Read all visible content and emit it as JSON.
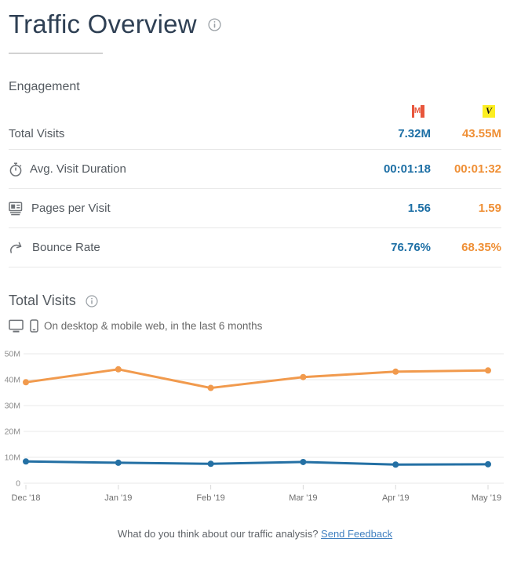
{
  "page": {
    "title": "Traffic Overview"
  },
  "engagement": {
    "section_label": "Engagement",
    "competitors": [
      {
        "name": "site-m",
        "letter": "M",
        "color": "#e8563c"
      },
      {
        "name": "site-v",
        "letter": "V",
        "color": "#fcee21"
      }
    ],
    "rows": [
      {
        "label": "Total Visits",
        "icon": "none",
        "values": [
          "7.32M",
          "43.55M"
        ]
      },
      {
        "label": "Avg. Visit Duration",
        "icon": "stopwatch",
        "values": [
          "00:01:18",
          "00:01:32"
        ]
      },
      {
        "label": "Pages per Visit",
        "icon": "pages",
        "values": [
          "1.56",
          "1.59"
        ]
      },
      {
        "label": "Bounce Rate",
        "icon": "bounce",
        "values": [
          "76.76%",
          "68.35%"
        ]
      }
    ]
  },
  "chart_section": {
    "title": "Total Visits",
    "subtitle": "On desktop & mobile web, in the last 6 months"
  },
  "chart_data": {
    "type": "line",
    "title": "Total Visits",
    "x": [
      "Dec '18",
      "Jan '19",
      "Feb '19",
      "Mar '19",
      "Apr '19",
      "May '19"
    ],
    "series": [
      {
        "name": "site-m-visits",
        "color": "#2470a4",
        "values": [
          8.4,
          7.9,
          7.5,
          8.2,
          7.2,
          7.32
        ]
      },
      {
        "name": "site-v-visits",
        "color": "#f19a4d",
        "values": [
          39.0,
          44.0,
          36.8,
          41.0,
          43.1,
          43.55
        ]
      }
    ],
    "value_unit": "millions",
    "ylim": [
      0,
      50
    ],
    "ylabel_ticks": [
      "0",
      "10M",
      "20M",
      "30M",
      "40M",
      "50M"
    ],
    "grid": true,
    "legend": "none"
  },
  "footer": {
    "question": "What do you think about our traffic analysis? ",
    "link_label": "Send Feedback"
  },
  "colors": {
    "primary_blue": "#1d6fa5",
    "orange": "#ef8f35",
    "title_navy": "#2f4054"
  }
}
